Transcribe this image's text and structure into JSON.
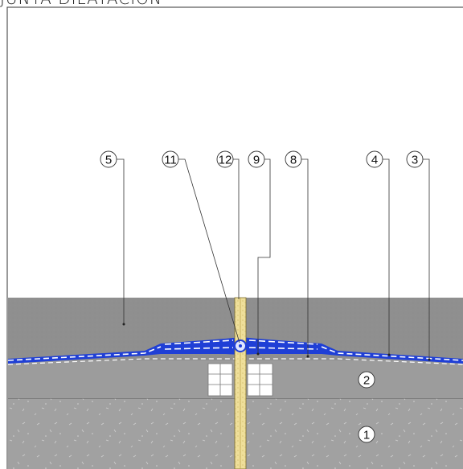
{
  "title": "JUNTA DILATACIÓN",
  "callouts": [
    {
      "label": "5"
    },
    {
      "label": "11"
    },
    {
      "label": "12"
    },
    {
      "label": "9"
    },
    {
      "label": "8"
    },
    {
      "label": "4"
    },
    {
      "label": "3"
    },
    {
      "label": "2"
    },
    {
      "label": "1"
    }
  ],
  "colors": {
    "pavement": "#8e8e8e",
    "base_layer": "#9b9b9b",
    "concrete": "#a3a3a3",
    "membrane": "#1f3fd6",
    "joint_filler": "#e8d48a"
  }
}
